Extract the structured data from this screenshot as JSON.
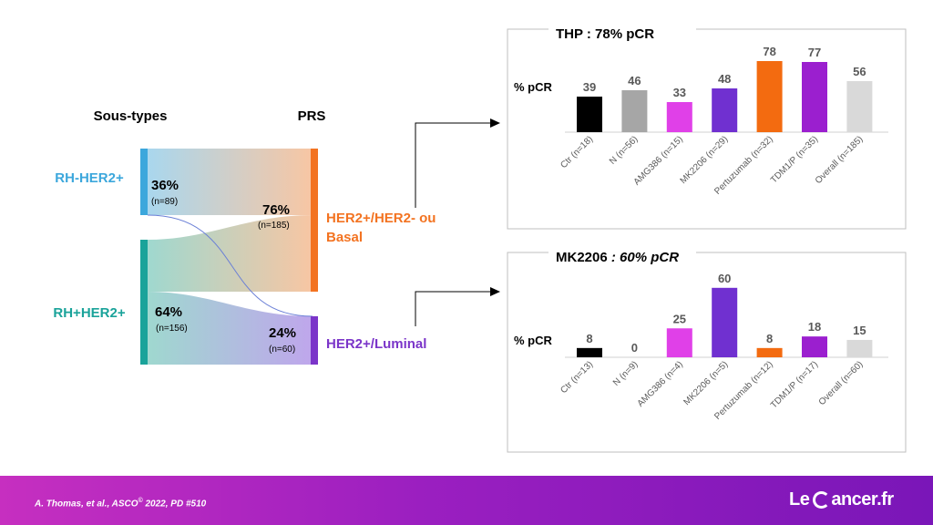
{
  "sankey": {
    "left_header": "Sous-types",
    "right_header": "PRS",
    "sources": [
      {
        "label": "RH-HER2+",
        "pct": "36%",
        "n": "(n=89)",
        "color": "#3ca7dc",
        "value": 89
      },
      {
        "label": "RH+HER2+",
        "pct": "64%",
        "n": "(n=156)",
        "color": "#1aa39a",
        "value": 156
      }
    ],
    "targets": [
      {
        "label_line1": "HER2+/HER2- ou",
        "label_line2": "Basal",
        "pct": "76%",
        "n": "(n=185)",
        "color": "#f37321",
        "value": 185
      },
      {
        "label_line1": "HER2+/Luminal",
        "label_line2": "",
        "pct": "24%",
        "n": "(n=60)",
        "color": "#7b35c9",
        "value": 60
      }
    ]
  },
  "chart_data": [
    {
      "type": "bar",
      "title": "THP : 78%  pCR",
      "title_main": "THP : 78%  pCR",
      "ylabel": "% pCR",
      "categories": [
        "Ctr (n=18)",
        "N (n=56)",
        "AMG386 (n=15)",
        "MK2206 (n=29)",
        "Pertuzumab (n=32)",
        "TDM1/P (n=35)",
        "Overall (n=185)"
      ],
      "values": [
        39,
        46,
        33,
        48,
        78,
        77,
        56
      ],
      "colors": [
        "#000000",
        "#a6a6a6",
        "#e040e8",
        "#7030d0",
        "#f36b10",
        "#9b1fcf",
        "#d9d9d9"
      ],
      "ylim": [
        0,
        80
      ]
    },
    {
      "type": "bar",
      "title": "MK2206 : 60% pCR",
      "title_main": "MK2206",
      "title_italic": " : 60% pCR",
      "ylabel": "% pCR",
      "categories": [
        "Ctr (n=13)",
        "N (n=9)",
        "AMG386 (n=4)",
        "MK2206 (n=5)",
        "Pertuzumab (n=12)",
        "TDM1/P (n=17)",
        "Overall (n=60)"
      ],
      "values": [
        8,
        0,
        25,
        60,
        8,
        18,
        15
      ],
      "colors": [
        "#000000",
        "#a6a6a6",
        "#e040e8",
        "#7030d0",
        "#f36b10",
        "#9b1fcf",
        "#d9d9d9"
      ],
      "ylim": [
        0,
        80
      ]
    }
  ],
  "footer": {
    "citation": "A. Thomas, et al., ASCO",
    "citation_sup": "©",
    "citation_rest": " 2022, PD #510",
    "brand_left": "Le",
    "brand_right": "ancer.fr"
  }
}
